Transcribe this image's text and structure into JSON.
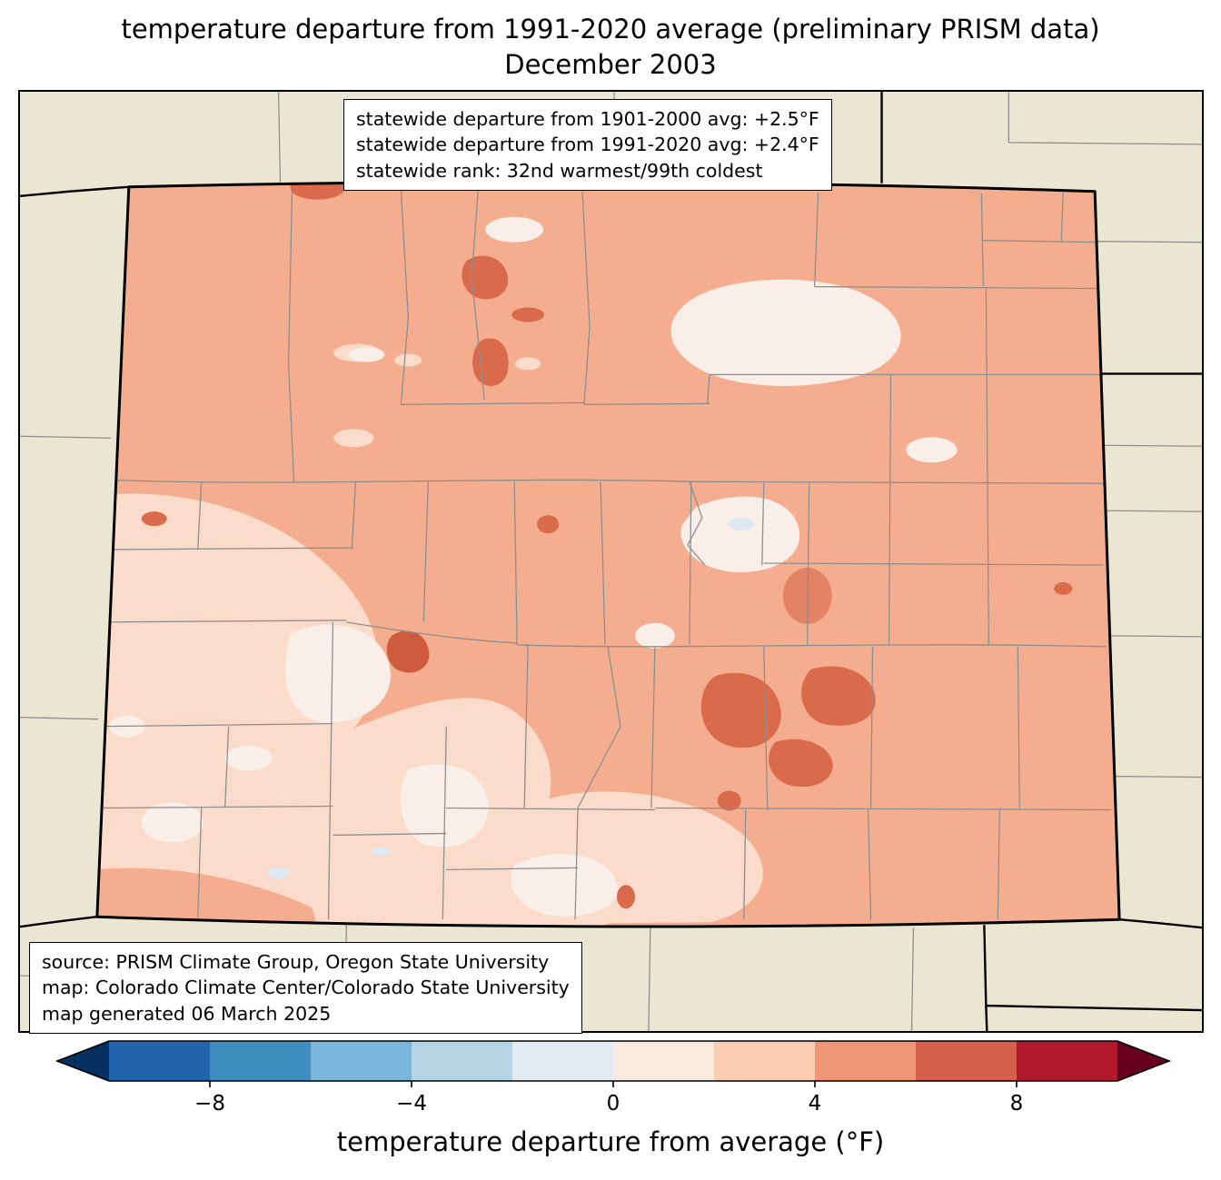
{
  "title": {
    "line1": "temperature departure from 1991-2020 average (preliminary PRISM data)",
    "line2": "December 2003"
  },
  "stats_box": {
    "lines": [
      "statewide departure from 1901-2000 avg: +2.5°F",
      "statewide departure from 1991-2020 avg: +2.4°F",
      "statewide rank: 32nd warmest/99th coldest"
    ]
  },
  "source_box": {
    "lines": [
      "source: PRISM Climate Group, Oregon State University",
      "map: Colorado Climate Center/Colorado State University",
      "map generated 06 March 2025"
    ]
  },
  "map": {
    "region": "Colorado",
    "palette": {
      "outside": "#ebe6d2",
      "base": "#f5ad8f",
      "pale": "#fbdcca",
      "near_zero": "#f9efe8",
      "warm_spot": "#d96a4b",
      "warm_mid": "#e28366",
      "warm_deep": "#cf5b3e",
      "cool_spot": "#dde9f2",
      "county_line": "#8e8e8e"
    }
  },
  "colorbar": {
    "label": "temperature departure from average (°F)",
    "ticks": [
      "−8",
      "−4",
      "0",
      "4",
      "8"
    ],
    "tick_values": [
      -8,
      -4,
      0,
      4,
      8
    ],
    "range": [
      -10,
      10
    ],
    "segment_colors": [
      "#2166ac",
      "#3f8ec0",
      "#7ab6d9",
      "#b5d5e7",
      "#e2ebf1",
      "#f9e9df",
      "#fbcdb5",
      "#f09576",
      "#d6604d",
      "#b2182b"
    ],
    "left_arrow_color": "#053061",
    "right_arrow_color": "#67001f"
  }
}
